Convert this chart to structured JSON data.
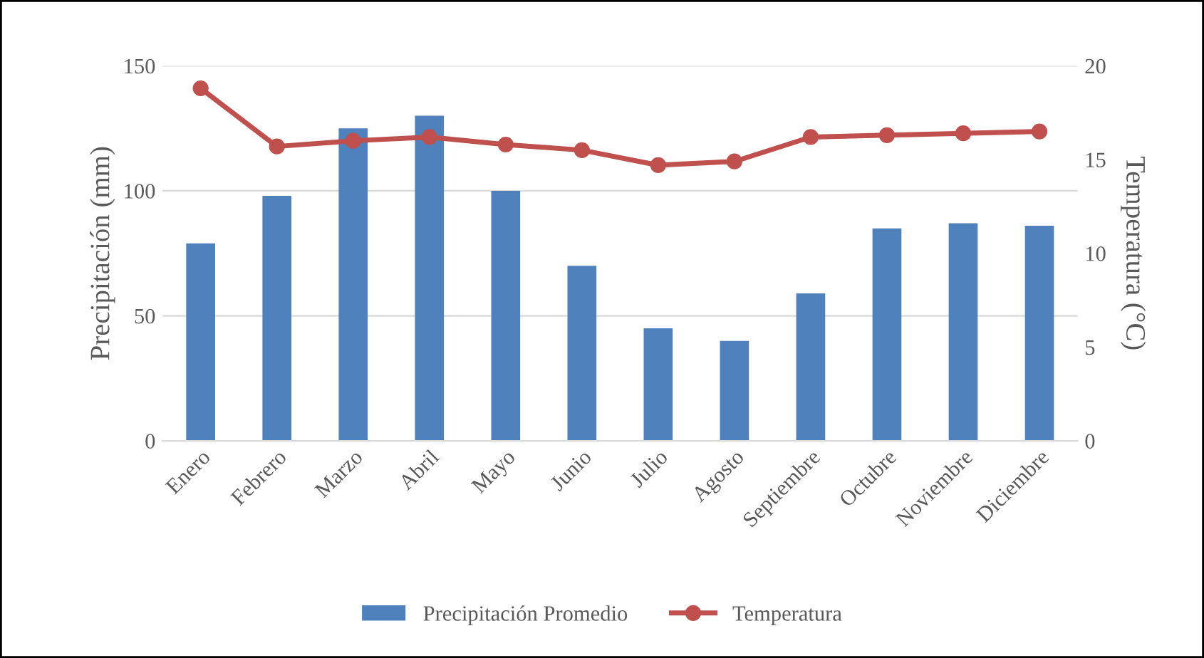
{
  "chart_data": {
    "type": "bar",
    "categories": [
      "Enero",
      "Febrero",
      "Marzo",
      "Abril",
      "Mayo",
      "Junio",
      "Julio",
      "Agosto",
      "Septiembre",
      "Octubre",
      "Noviembre",
      "Diciembre"
    ],
    "series": [
      {
        "name": "Precipitación Promedio",
        "color": "#4f81bd",
        "values": [
          79,
          98,
          125,
          130,
          100,
          70,
          45,
          40,
          59,
          85,
          87,
          86
        ]
      },
      {
        "name": "Temperatura",
        "type": "line",
        "axis": "y2",
        "color": "#c0504d",
        "marker": "circle",
        "values": [
          18.8,
          15.7,
          16.0,
          16.2,
          15.8,
          15.5,
          14.7,
          14.9,
          16.2,
          16.3,
          16.4,
          16.5
        ]
      }
    ],
    "ylabel": "Precipitación (mm)",
    "y2label": "Temperatura (°C)",
    "ylim": [
      0,
      150
    ],
    "yticks": [
      0,
      50,
      100,
      150
    ],
    "y2lim": [
      0,
      20
    ],
    "y2ticks": [
      0,
      5,
      10,
      15,
      20
    ],
    "grid": "y",
    "legend": "bottom"
  }
}
